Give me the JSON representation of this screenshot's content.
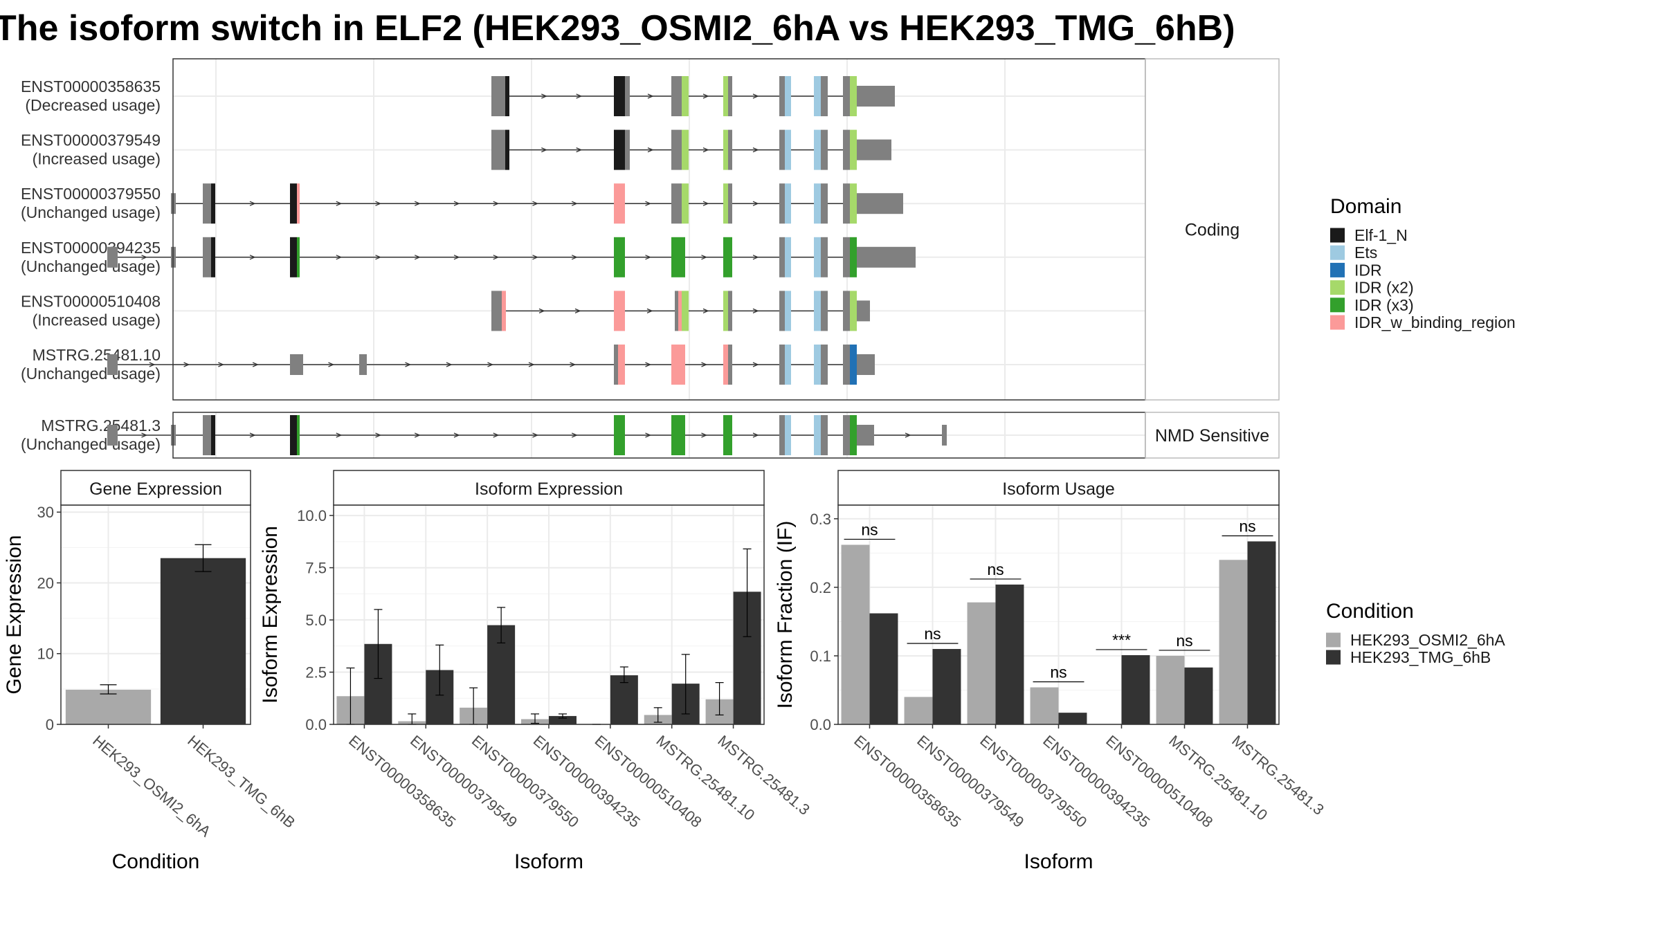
{
  "title": "The isoform switch in ELF2 (HEK293_OSMI2_6hA vs HEK293_TMG_6hB)",
  "colors": {
    "exon": "#808080",
    "intron": "#333333",
    "panel_border": "#333333",
    "grid": "#ebebeb",
    "strip_bg": "#ffffff",
    "cond_A": "#a9a9a9",
    "cond_B": "#333333"
  },
  "domain_legend": {
    "title": "Domain",
    "items": [
      {
        "label": "Elf-1_N",
        "color": "#1a1a1a"
      },
      {
        "label": "Ets",
        "color": "#9ecae1"
      },
      {
        "label": "IDR",
        "color": "#2171b5"
      },
      {
        "label": "IDR (x2)",
        "color": "#a6d96a"
      },
      {
        "label": "IDR (x3)",
        "color": "#33a02c"
      },
      {
        "label": "IDR_w_binding_region",
        "color": "#fb9a99"
      }
    ]
  },
  "condition_legend": {
    "title": "Condition",
    "items": [
      {
        "label": "HEK293_OSMI2_6hA",
        "color": "#a9a9a9"
      },
      {
        "label": "HEK293_TMG_6hB",
        "color": "#333333"
      }
    ]
  },
  "transcript_panels": [
    {
      "strip": "Coding",
      "rows": [
        {
          "id": "ENST00000358635",
          "usage": "(Decreased usage)",
          "exons": [
            [
              710,
              730,
              "T"
            ],
            [
              730,
              736,
              "Elf-1_N"
            ],
            [
              887,
              903,
              "Elf-1_N"
            ],
            [
              903,
              910,
              "T"
            ],
            [
              970,
              985,
              "T"
            ],
            [
              985,
              995,
              "IDR (x2)"
            ],
            [
              1045,
              1052,
              "IDR (x2)"
            ],
            [
              1052,
              1058,
              "T"
            ],
            [
              1126,
              1134,
              "T"
            ],
            [
              1134,
              1143,
              "Ets"
            ],
            [
              1176,
              1186,
              "Ets"
            ],
            [
              1186,
              1196,
              "T"
            ],
            [
              1218,
              1228,
              "T"
            ],
            [
              1228,
              1238,
              "IDR (x2)"
            ],
            [
              1238,
              1293,
              "U"
            ]
          ]
        },
        {
          "id": "ENST00000379549",
          "usage": "(Increased usage)",
          "exons": [
            [
              710,
              730,
              "T"
            ],
            [
              730,
              736,
              "Elf-1_N"
            ],
            [
              887,
              903,
              "Elf-1_N"
            ],
            [
              903,
              910,
              "T"
            ],
            [
              970,
              985,
              "T"
            ],
            [
              985,
              995,
              "IDR (x2)"
            ],
            [
              1045,
              1052,
              "IDR (x2)"
            ],
            [
              1052,
              1058,
              "T"
            ],
            [
              1126,
              1134,
              "T"
            ],
            [
              1134,
              1143,
              "Ets"
            ],
            [
              1176,
              1186,
              "Ets"
            ],
            [
              1186,
              1196,
              "T"
            ],
            [
              1218,
              1228,
              "T"
            ],
            [
              1228,
              1238,
              "IDR (x2)"
            ],
            [
              1238,
              1288,
              "U"
            ]
          ]
        },
        {
          "id": "ENST00000379550",
          "usage": "(Unchanged usage)",
          "exons": [
            [
              247,
              254,
              "U"
            ],
            [
              293,
              305,
              "T"
            ],
            [
              305,
              311,
              "Elf-1_N"
            ],
            [
              419,
              429,
              "Elf-1_N"
            ],
            [
              429,
              433,
              "IDR_w_binding_region"
            ],
            [
              887,
              903,
              "IDR_w_binding_region"
            ],
            [
              970,
              985,
              "T"
            ],
            [
              985,
              995,
              "IDR (x2)"
            ],
            [
              1045,
              1052,
              "IDR (x2)"
            ],
            [
              1052,
              1058,
              "T"
            ],
            [
              1126,
              1134,
              "T"
            ],
            [
              1134,
              1143,
              "Ets"
            ],
            [
              1176,
              1186,
              "Ets"
            ],
            [
              1186,
              1196,
              "T"
            ],
            [
              1218,
              1228,
              "T"
            ],
            [
              1228,
              1238,
              "IDR (x2)"
            ],
            [
              1238,
              1305,
              "U"
            ]
          ]
        },
        {
          "id": "ENST00000394235",
          "usage": "(Unchanged usage)",
          "exons": [
            [
              155,
              170,
              "U"
            ],
            [
              247,
              254,
              "U"
            ],
            [
              293,
              305,
              "T"
            ],
            [
              305,
              311,
              "Elf-1_N"
            ],
            [
              419,
              429,
              "Elf-1_N"
            ],
            [
              429,
              433,
              "IDR (x3)"
            ],
            [
              887,
              903,
              "IDR (x3)"
            ],
            [
              970,
              990,
              "IDR (x3)"
            ],
            [
              1045,
              1058,
              "IDR (x3)"
            ],
            [
              1126,
              1134,
              "T"
            ],
            [
              1134,
              1143,
              "Ets"
            ],
            [
              1176,
              1186,
              "Ets"
            ],
            [
              1186,
              1196,
              "T"
            ],
            [
              1218,
              1228,
              "T"
            ],
            [
              1228,
              1238,
              "IDR (x3)"
            ],
            [
              1238,
              1323,
              "U"
            ]
          ]
        },
        {
          "id": "ENST00000510408",
          "usage": "(Increased usage)",
          "exons": [
            [
              710,
              725,
              "T"
            ],
            [
              725,
              731,
              "IDR_w_binding_region"
            ],
            [
              887,
              903,
              "IDR_w_binding_region"
            ],
            [
              975,
              980,
              "T"
            ],
            [
              980,
              985,
              "IDR_w_binding_region"
            ],
            [
              985,
              995,
              "IDR (x2)"
            ],
            [
              1045,
              1052,
              "IDR (x2)"
            ],
            [
              1052,
              1058,
              "T"
            ],
            [
              1126,
              1134,
              "T"
            ],
            [
              1134,
              1143,
              "Ets"
            ],
            [
              1176,
              1186,
              "Ets"
            ],
            [
              1186,
              1196,
              "T"
            ],
            [
              1218,
              1228,
              "T"
            ],
            [
              1228,
              1238,
              "IDR (x2)"
            ],
            [
              1238,
              1257,
              "U"
            ]
          ]
        },
        {
          "id": "MSTRG.25481.10",
          "usage": "(Unchanged usage)",
          "exons": [
            [
              155,
              170,
              "U"
            ],
            [
              419,
              438,
              "U"
            ],
            [
              519,
              530,
              "U"
            ],
            [
              887,
              893,
              "T"
            ],
            [
              893,
              903,
              "IDR_w_binding_region"
            ],
            [
              970,
              990,
              "IDR_w_binding_region"
            ],
            [
              1045,
              1052,
              "IDR_w_binding_region"
            ],
            [
              1052,
              1058,
              "T"
            ],
            [
              1126,
              1134,
              "T"
            ],
            [
              1134,
              1143,
              "Ets"
            ],
            [
              1176,
              1186,
              "Ets"
            ],
            [
              1186,
              1196,
              "T"
            ],
            [
              1218,
              1228,
              "T"
            ],
            [
              1228,
              1238,
              "IDR"
            ],
            [
              1238,
              1264,
              "U"
            ]
          ]
        }
      ]
    },
    {
      "strip": "NMD Sensitive",
      "rows": [
        {
          "id": "MSTRG.25481.3",
          "usage": "(Unchanged usage)",
          "exons": [
            [
              155,
              170,
              "U"
            ],
            [
              247,
              254,
              "U"
            ],
            [
              293,
              305,
              "T"
            ],
            [
              305,
              311,
              "Elf-1_N"
            ],
            [
              419,
              429,
              "Elf-1_N"
            ],
            [
              429,
              433,
              "IDR (x3)"
            ],
            [
              887,
              903,
              "IDR (x3)"
            ],
            [
              970,
              990,
              "IDR (x3)"
            ],
            [
              1045,
              1058,
              "IDR (x3)"
            ],
            [
              1126,
              1134,
              "T"
            ],
            [
              1134,
              1143,
              "Ets"
            ],
            [
              1176,
              1186,
              "Ets"
            ],
            [
              1186,
              1196,
              "T"
            ],
            [
              1218,
              1228,
              "T"
            ],
            [
              1228,
              1238,
              "IDR (x3)"
            ],
            [
              1238,
              1263,
              "U"
            ],
            [
              1361,
              1368,
              "U"
            ]
          ]
        }
      ]
    }
  ],
  "chart_data": [
    {
      "type": "bar",
      "strip": "Gene Expression",
      "xlabel": "Condition",
      "ylabel": "Gene Expression",
      "categories": [
        "HEK293_OSMI2_6hA",
        "HEK293_TMG_6hB"
      ],
      "values": [
        4.9,
        23.5
      ],
      "errors": [
        [
          4.3,
          5.6
        ],
        [
          21.6,
          25.4
        ]
      ],
      "ylim": [
        0,
        31
      ],
      "yticks": [
        "0",
        "10",
        "20",
        "30"
      ],
      "ytick_values": [
        0,
        10,
        20,
        30
      ]
    },
    {
      "type": "bar",
      "strip": "Isoform Expression",
      "xlabel": "Isoform",
      "ylabel": "Isoform Expression",
      "categories": [
        "ENST00000358635",
        "ENST00000379549",
        "ENST00000379550",
        "ENST00000394235",
        "ENST00000510408",
        "MSTRG.25481.10",
        "MSTRG.25481.3"
      ],
      "ylim": [
        0,
        10.5
      ],
      "yticks": [
        "0.0",
        "2.5",
        "5.0",
        "7.5",
        "10.0"
      ],
      "ytick_values": [
        0,
        2.5,
        5,
        7.5,
        10
      ],
      "series": [
        {
          "name": "HEK293_OSMI2_6hA",
          "values": [
            1.35,
            0.15,
            0.8,
            0.25,
            0.0,
            0.45,
            1.2
          ],
          "errors": [
            [
              0.0,
              2.7
            ],
            [
              0.0,
              0.5
            ],
            [
              0.0,
              1.75
            ],
            [
              0.05,
              0.5
            ],
            [
              0.0,
              0.0
            ],
            [
              0.1,
              0.8
            ],
            [
              0.45,
              2.0
            ]
          ]
        },
        {
          "name": "HEK293_TMG_6hB",
          "values": [
            3.85,
            2.6,
            4.75,
            0.4,
            2.35,
            1.95,
            6.35
          ],
          "errors": [
            [
              2.2,
              5.5
            ],
            [
              1.4,
              3.8
            ],
            [
              3.9,
              5.6
            ],
            [
              0.3,
              0.5
            ],
            [
              2.0,
              2.75
            ],
            [
              0.5,
              3.35
            ],
            [
              4.2,
              8.4
            ]
          ]
        }
      ]
    },
    {
      "type": "bar",
      "strip": "Isoform Usage",
      "xlabel": "Isoform",
      "ylabel": "Isoform Fraction (IF)",
      "categories": [
        "ENST00000358635",
        "ENST00000379549",
        "ENST00000379550",
        "ENST00000394235",
        "ENST00000510408",
        "MSTRG.25481.10",
        "MSTRG.25481.3"
      ],
      "ylim": [
        0,
        0.32
      ],
      "yticks": [
        "0.0",
        "0.1",
        "0.2",
        "0.3"
      ],
      "ytick_values": [
        0,
        0.1,
        0.2,
        0.3
      ],
      "series": [
        {
          "name": "HEK293_OSMI2_6hA",
          "values": [
            0.262,
            0.04,
            0.178,
            0.054,
            0.0,
            0.1,
            0.24
          ]
        },
        {
          "name": "HEK293_TMG_6hB",
          "values": [
            0.162,
            0.11,
            0.204,
            0.017,
            0.101,
            0.083,
            0.267
          ]
        }
      ],
      "significance": [
        "ns",
        "ns",
        "ns",
        "ns",
        "***",
        "ns",
        "ns"
      ]
    }
  ]
}
